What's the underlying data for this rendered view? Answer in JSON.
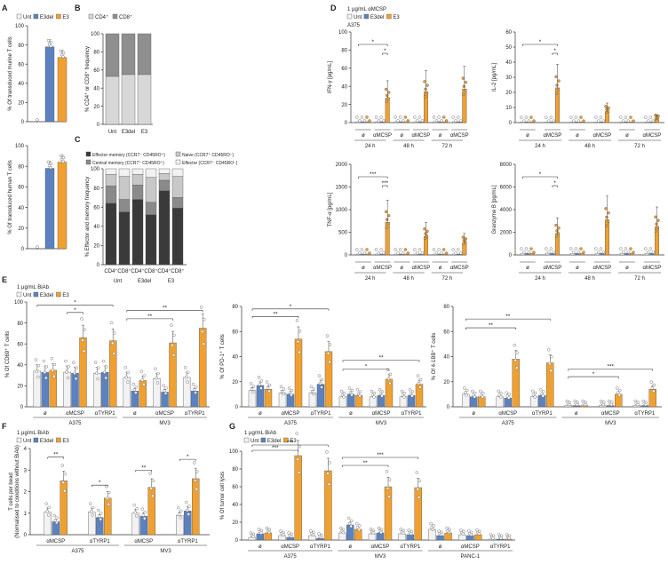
{
  "colors": {
    "unt": "#f2f2f2",
    "e3del": "#5b82bf",
    "e3": "#f0a030",
    "dot": "#ffffff",
    "mem_effector": "#3a3a3a",
    "mem_central": "#8a8a8a",
    "mem_naive": "#c8c8c8",
    "mem_eff2": "#f2f2f2",
    "cd4": "#d7d7d7",
    "cd8": "#8f8f8f"
  },
  "chart_data": [
    {
      "id": "A1",
      "letter": "A",
      "type": "bar",
      "legend": [
        "Unt",
        "E3del",
        "E3"
      ],
      "categories": [
        "Unt",
        "E3del",
        "E3"
      ],
      "values": [
        0,
        78,
        67
      ],
      "ylabel": "% Of transduced murine T cells",
      "yticks": [
        0,
        20,
        40,
        60,
        80,
        100
      ],
      "ylim": [
        0,
        100
      ]
    },
    {
      "id": "A2",
      "type": "bar",
      "categories": [
        "Unt",
        "E3del",
        "E3"
      ],
      "values": [
        0,
        78,
        84
      ],
      "ylabel": "% Of transduced human T cells",
      "yticks": [
        0,
        20,
        40,
        60,
        80,
        100
      ],
      "ylim": [
        0,
        100
      ]
    },
    {
      "id": "B",
      "letter": "B",
      "type": "bar",
      "stacked": true,
      "legend": [
        "CD4⁺",
        "CD8⁺"
      ],
      "categories": [
        "Unt",
        "E3del",
        "E3"
      ],
      "series": [
        {
          "name": "CD4⁺",
          "values": [
            53,
            55,
            55
          ]
        },
        {
          "name": "CD8⁺",
          "values": [
            47,
            45,
            45
          ]
        }
      ],
      "ylabel": "% CD4⁺ or CD8⁺ frequency",
      "yticks": [
        0,
        20,
        40,
        60,
        80,
        100
      ],
      "ylim": [
        0,
        100
      ]
    },
    {
      "id": "C",
      "letter": "C",
      "type": "bar",
      "stacked": true,
      "legend": [
        "Effector memory (CCR7⁻ CD45RO⁺)",
        "Naive (CCR7⁺ CD45RO⁻)",
        "Central memory (CCR7⁺ CD45RO⁺)",
        "Effector (CCR7⁻ CD45RO⁻)"
      ],
      "categories": [
        "CD4⁺",
        "CD8⁺",
        "CD4⁺",
        "CD8⁺",
        "CD4⁺",
        "CD8⁺"
      ],
      "groups": [
        "Unt",
        "E3del",
        "E3"
      ],
      "series": [
        {
          "name": "Effector memory (CCR7⁻ CD45RO⁺)",
          "values": [
            64,
            55,
            68,
            52,
            77,
            59
          ]
        },
        {
          "name": "Central memory (CCR7⁺ CD45RO⁺)",
          "values": [
            18,
            13,
            15,
            13,
            11,
            11
          ]
        },
        {
          "name": "Naive (CCR7⁺ CD45RO⁻)",
          "values": [
            12,
            24,
            11,
            26,
            7,
            22
          ]
        },
        {
          "name": "Effector (CCR7⁻ CD45RO⁻)",
          "values": [
            6,
            8,
            6,
            9,
            5,
            8
          ]
        }
      ],
      "ylabel": "% Effector and memory frequency",
      "yticks": [
        0,
        20,
        40,
        60,
        80,
        100
      ],
      "ylim": [
        0,
        100
      ]
    },
    {
      "id": "D1",
      "letter": "D",
      "type": "bar",
      "legend": [
        "Unt",
        "E3del",
        "E3"
      ],
      "note": "1 µg/mL αMCSP",
      "sub": "A375",
      "ylabel": "IFN-γ [pg/mL]",
      "yticks": [
        0,
        20,
        40,
        60,
        80,
        100
      ],
      "ylim": [
        0,
        100
      ],
      "time_labels": [
        "24 h",
        "48 h",
        "72 h"
      ],
      "cond_labels": [
        "ø",
        "αMCSP"
      ],
      "values": [
        [
          [
            1,
            1,
            1
          ],
          [
            1,
            1,
            27
          ]
        ],
        [
          [
            1,
            1,
            1
          ],
          [
            1,
            1,
            34
          ]
        ],
        [
          [
            1,
            1,
            1
          ],
          [
            1,
            1,
            37
          ]
        ]
      ],
      "sig": [
        "*",
        "*"
      ]
    },
    {
      "id": "D2",
      "type": "bar",
      "ylabel": "IL-2 [pg/mL]",
      "yticks": [
        0,
        10,
        20,
        30,
        40,
        50,
        60
      ],
      "ylim": [
        0,
        60
      ],
      "time_labels": [
        "24 h",
        "48 h",
        "72 h"
      ],
      "cond_labels": [
        "ø",
        "αMCSP"
      ],
      "values": [
        [
          [
            0.5,
            0.5,
            0.5
          ],
          [
            0.5,
            0.5,
            23
          ]
        ],
        [
          [
            0.5,
            0.5,
            0.5
          ],
          [
            0.5,
            0.5,
            7
          ]
        ],
        [
          [
            0.5,
            0.5,
            0.5
          ],
          [
            0.5,
            0.5,
            2
          ]
        ]
      ],
      "sig": [
        "*",
        "*"
      ]
    },
    {
      "id": "D3",
      "type": "bar",
      "ylabel": "TNF-α [pg/mL]",
      "yticks": [
        0,
        500,
        1000,
        1500,
        2000
      ],
      "ylim": [
        0,
        2000
      ],
      "time_labels": [
        "24 h",
        "48 h",
        "72 h"
      ],
      "cond_labels": [
        "ø",
        "αMCSP"
      ],
      "values": [
        [
          [
            20,
            20,
            20
          ],
          [
            20,
            20,
            720
          ]
        ],
        [
          [
            20,
            20,
            20
          ],
          [
            20,
            20,
            410
          ]
        ],
        [
          [
            20,
            20,
            20
          ],
          [
            20,
            20,
            260
          ]
        ]
      ],
      "sig": [
        "***",
        "***"
      ]
    },
    {
      "id": "D4",
      "type": "bar",
      "ylabel": "Granzyme B [pg/mL]",
      "yticks": [
        0,
        2000,
        4000,
        6000,
        8000
      ],
      "ylim": [
        0,
        8000
      ],
      "time_labels": [
        "24 h",
        "48 h",
        "72 h"
      ],
      "cond_labels": [
        "ø",
        "αMCSP"
      ],
      "values": [
        [
          [
            150,
            150,
            150
          ],
          [
            150,
            150,
            1900
          ]
        ],
        [
          [
            150,
            150,
            150
          ],
          [
            150,
            150,
            3100
          ]
        ],
        [
          [
            150,
            150,
            150
          ],
          [
            150,
            150,
            2500
          ]
        ]
      ],
      "sig": [
        "*",
        "*"
      ]
    },
    {
      "id": "E1",
      "letter": "E",
      "type": "bar",
      "legend": [
        "Unt",
        "E3del",
        "E3"
      ],
      "note": "1 µg/mL BiAb",
      "ylabel": "% Of CD69⁺ T cells",
      "yticks": [
        0,
        20,
        40,
        60,
        80,
        100
      ],
      "ylim": [
        0,
        100
      ],
      "cond_labels": [
        "ø",
        "αMCSP",
        "αTYRP1",
        "ø",
        "αMCSP",
        "αTYRP1"
      ],
      "cell_labels": [
        "A375",
        "MV3"
      ],
      "values": [
        [
          34,
          33,
          35
        ],
        [
          33,
          32,
          66
        ],
        [
          32,
          33,
          63
        ],
        [
          28,
          15,
          25
        ],
        [
          27,
          14,
          61
        ],
        [
          28,
          15,
          75
        ]
      ],
      "sig": [
        "*",
        "*",
        "**",
        "**"
      ]
    },
    {
      "id": "E2",
      "type": "bar",
      "ylabel": "% Of PD-1⁺ T cells",
      "yticks": [
        0,
        20,
        40,
        60,
        80
      ],
      "ylim": [
        0,
        80
      ],
      "cond_labels": [
        "ø",
        "αMCSP",
        "αTYRP1",
        "ø",
        "αMCSP",
        "αTYRP1"
      ],
      "cell_labels": [
        "A375",
        "MV3"
      ],
      "values": [
        [
          13,
          17,
          14
        ],
        [
          11,
          10,
          54
        ],
        [
          11,
          18,
          44
        ],
        [
          8,
          10,
          9
        ],
        [
          8,
          9,
          22
        ],
        [
          8,
          9,
          18
        ]
      ],
      "sig": [
        "**",
        "*",
        "*",
        "**"
      ]
    },
    {
      "id": "E3",
      "type": "bar",
      "ylabel": "% Of 4-1BB⁺ T cells",
      "yticks": [
        0,
        20,
        40,
        60,
        80
      ],
      "ylim": [
        0,
        80
      ],
      "cond_labels": [
        "ø",
        "αMCSP",
        "αTYRP1",
        "ø",
        "αMCSP",
        "αTYRP1"
      ],
      "cell_labels": [
        "A375",
        "MV3"
      ],
      "values": [
        [
          10,
          8,
          8
        ],
        [
          8,
          7,
          38
        ],
        [
          8,
          9,
          35
        ],
        [
          1,
          1,
          1
        ],
        [
          1,
          1,
          10
        ],
        [
          1,
          1,
          14
        ]
      ],
      "sig": [
        "**",
        "**",
        "*",
        "***"
      ]
    },
    {
      "id": "F",
      "letter": "F",
      "type": "bar",
      "legend": [
        "Unt",
        "E3del",
        "E3"
      ],
      "note": "1 µg/mL BiAb",
      "ylabel": "T cells per bead",
      "ylabel2": "(Normalised to conditions without BiAb)",
      "yticks": [
        0,
        1,
        2,
        3,
        4
      ],
      "ylim": [
        0,
        4
      ],
      "cond_labels": [
        "αMCSP",
        "αTYRP1",
        "αMCSP",
        "αTYRP1"
      ],
      "cell_labels": [
        "A375",
        "MV3"
      ],
      "values": [
        [
          1.05,
          0.6,
          2.5
        ],
        [
          1.05,
          0.8,
          1.7
        ],
        [
          1.0,
          0.85,
          2.2
        ],
        [
          0.9,
          1.1,
          2.6
        ]
      ],
      "sig": [
        "**",
        "*",
        "**",
        "*"
      ]
    },
    {
      "id": "G",
      "letter": "G",
      "type": "bar",
      "legend": [
        "Unt",
        "E3del",
        "E3"
      ],
      "note": "1 µg/mL BiAb",
      "ylabel": "% Of tumor cell lysis",
      "yticks": [
        0,
        20,
        40,
        60,
        80,
        100
      ],
      "ylim": [
        0,
        100
      ],
      "cond_labels": [
        "ø",
        "αMCSP",
        "αTYRP1",
        "ø",
        "αMCSP",
        "αTYRP1",
        "ø",
        "αMCSP",
        "αTYRP1"
      ],
      "cell_labels": [
        "A375",
        "MV3",
        "PANC-1"
      ],
      "values": [
        [
          3,
          7,
          8
        ],
        [
          5,
          3,
          95
        ],
        [
          5,
          2,
          78
        ],
        [
          8,
          17,
          12
        ],
        [
          7,
          8,
          60
        ],
        [
          7,
          6,
          59
        ],
        [
          12,
          5,
          8
        ],
        [
          6,
          5,
          6
        ],
        [
          1,
          1,
          1
        ]
      ],
      "sig": [
        "***",
        "***",
        "**",
        "***"
      ]
    }
  ]
}
